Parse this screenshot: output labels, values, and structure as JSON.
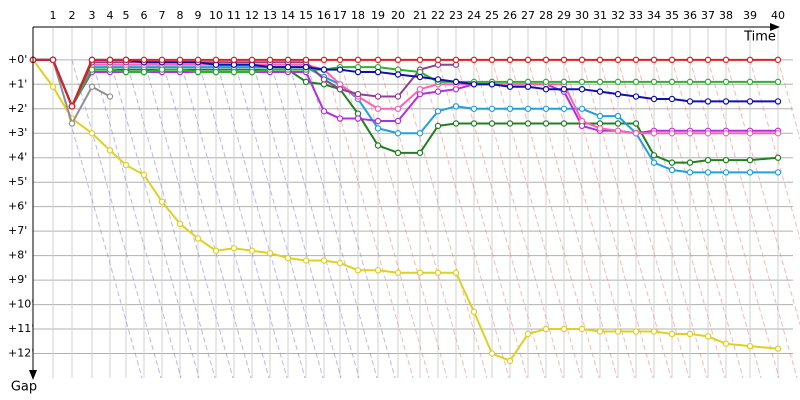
{
  "chart_data": {
    "type": "line",
    "x_label": "Time",
    "y_label": "Gap",
    "x": [
      0,
      20,
      39,
      59,
      77,
      93,
      111,
      129,
      147,
      165,
      183,
      201,
      219,
      237,
      255,
      273,
      291,
      307,
      325,
      345,
      365,
      387,
      405,
      423,
      441,
      459,
      477,
      495,
      513,
      531,
      549,
      567,
      585,
      603,
      621,
      639,
      657,
      675,
      693,
      717,
      745
    ],
    "xlim": [
      0,
      760
    ],
    "xticks": [
      {
        "value": 20,
        "label": "1"
      },
      {
        "value": 39,
        "label": "2"
      },
      {
        "value": 59,
        "label": "3"
      },
      {
        "value": 77,
        "label": "4"
      },
      {
        "value": 93,
        "label": "5"
      },
      {
        "value": 111,
        "label": "6"
      },
      {
        "value": 129,
        "label": "7"
      },
      {
        "value": 147,
        "label": "8"
      },
      {
        "value": 165,
        "label": "9"
      },
      {
        "value": 183,
        "label": "10"
      },
      {
        "value": 201,
        "label": "11"
      },
      {
        "value": 219,
        "label": "12"
      },
      {
        "value": 237,
        "label": "13"
      },
      {
        "value": 255,
        "label": "14"
      },
      {
        "value": 273,
        "label": "15"
      },
      {
        "value": 291,
        "label": "16"
      },
      {
        "value": 307,
        "label": "17"
      },
      {
        "value": 325,
        "label": "18"
      },
      {
        "value": 345,
        "label": "19"
      },
      {
        "value": 365,
        "label": "20"
      },
      {
        "value": 387,
        "label": "21"
      },
      {
        "value": 405,
        "label": "22"
      },
      {
        "value": 423,
        "label": "23"
      },
      {
        "value": 441,
        "label": "24"
      },
      {
        "value": 459,
        "label": "25"
      },
      {
        "value": 477,
        "label": "26"
      },
      {
        "value": 495,
        "label": "27"
      },
      {
        "value": 513,
        "label": "28"
      },
      {
        "value": 531,
        "label": "29"
      },
      {
        "value": 549,
        "label": "30"
      },
      {
        "value": 567,
        "label": "31"
      },
      {
        "value": 585,
        "label": "32"
      },
      {
        "value": 603,
        "label": "33"
      },
      {
        "value": 621,
        "label": "34"
      },
      {
        "value": 639,
        "label": "35"
      },
      {
        "value": 657,
        "label": "36"
      },
      {
        "value": 675,
        "label": "37"
      },
      {
        "value": 693,
        "label": "38"
      },
      {
        "value": 717,
        "label": "39"
      },
      {
        "value": 745,
        "label": "40"
      }
    ],
    "ylim": [
      -1.3,
      13
    ],
    "yticks": [
      {
        "value": 0,
        "label": "+0'"
      },
      {
        "value": 1,
        "label": "+1'"
      },
      {
        "value": 2,
        "label": "+2'"
      },
      {
        "value": 3,
        "label": "+3'"
      },
      {
        "value": 4,
        "label": "+4'"
      },
      {
        "value": 5,
        "label": "+5'"
      },
      {
        "value": 6,
        "label": "+6'"
      },
      {
        "value": 7,
        "label": "+7'"
      },
      {
        "value": 8,
        "label": "+8'"
      },
      {
        "value": 9,
        "label": "+9'"
      },
      {
        "value": 10,
        "label": "+10'"
      },
      {
        "value": 11,
        "label": "+11'"
      },
      {
        "value": 12,
        "label": "+12'"
      }
    ],
    "grid": true,
    "series": [
      {
        "color": "#e0d020",
        "values": [
          0,
          1.1,
          2.4,
          3.0,
          3.7,
          4.3,
          4.7,
          5.8,
          6.7,
          7.3,
          7.8,
          7.7,
          7.8,
          7.9,
          8.1,
          8.2,
          8.2,
          8.3,
          8.6,
          8.6,
          8.7,
          8.7,
          8.7,
          8.7,
          10.3,
          12.0,
          12.3,
          11.2,
          11.0,
          11.0,
          11.0,
          11.1,
          11.1,
          11.1,
          11.1,
          11.2,
          11.2,
          11.3,
          11.6,
          11.7,
          11.8
        ]
      },
      {
        "color": "#909090",
        "values": [
          0,
          0,
          2.6,
          1.1,
          1.5,
          null,
          null,
          null,
          null,
          null,
          null,
          null,
          null,
          null,
          null,
          null,
          null,
          null,
          null,
          null,
          null,
          null,
          null,
          null,
          null,
          null,
          null,
          null,
          null,
          null,
          null,
          null,
          null,
          null,
          null,
          null,
          null,
          null,
          null,
          null,
          null
        ]
      },
      {
        "color": "#208020",
        "values": [
          0,
          0,
          1.9,
          0.4,
          0.4,
          0.4,
          0.4,
          0.4,
          0.4,
          0.4,
          0.4,
          0.4,
          0.4,
          0.4,
          0.4,
          0.9,
          1.0,
          1.2,
          2.2,
          3.5,
          3.8,
          3.8,
          2.7,
          2.6,
          2.6,
          2.6,
          2.6,
          2.6,
          2.6,
          2.6,
          2.6,
          2.6,
          2.6,
          2.6,
          3.9,
          4.2,
          4.2,
          4.1,
          4.1,
          4.1,
          4.0
        ]
      },
      {
        "color": "#20a0e0",
        "values": [
          0,
          0,
          1.9,
          0.3,
          0.3,
          0.3,
          0.3,
          0.3,
          0.3,
          0.3,
          0.3,
          0.3,
          0.3,
          0.3,
          0.3,
          0.3,
          0.7,
          1.0,
          1.6,
          2.8,
          3.0,
          3.0,
          2.1,
          1.9,
          2.0,
          2.0,
          2.0,
          2.0,
          2.0,
          2.0,
          2.0,
          2.3,
          2.3,
          3.0,
          4.2,
          4.5,
          4.6,
          4.6,
          4.6,
          4.6,
          4.6
        ]
      },
      {
        "color": "#b030e0",
        "values": [
          0,
          0,
          1.9,
          0.5,
          0.5,
          0.5,
          0.5,
          0.5,
          0.5,
          0.5,
          0.5,
          0.5,
          0.5,
          0.5,
          0.5,
          0.5,
          2.1,
          2.4,
          2.4,
          2.5,
          2.5,
          1.4,
          1.3,
          1.2,
          1.0,
          1.0,
          1.0,
          1.0,
          1.0,
          1.3,
          2.7,
          2.9,
          2.9,
          3.0,
          2.9,
          2.9,
          2.9,
          2.9,
          2.9,
          2.9,
          2.9
        ]
      },
      {
        "color": "#ff60b0",
        "values": [
          0,
          0,
          1.9,
          0.2,
          0.2,
          0.2,
          0.2,
          0.2,
          0.2,
          0.2,
          0.2,
          0.2,
          0.2,
          0.2,
          0.2,
          0.2,
          0.4,
          1.0,
          1.5,
          2.0,
          2.0,
          1.2,
          1.0,
          1.0,
          1.0,
          1.0,
          1.0,
          1.0,
          1.0,
          1.0,
          2.5,
          2.8,
          2.9,
          3.0,
          3.0,
          3.0,
          3.0,
          3.0,
          3.0,
          3.0,
          3.0
        ]
      },
      {
        "color": "#904090",
        "values": [
          0,
          0,
          1.9,
          0.1,
          0.1,
          0.1,
          0.1,
          0.1,
          0.1,
          0.1,
          0.1,
          0.1,
          0.1,
          0.1,
          0.1,
          0.1,
          0.8,
          1.2,
          1.4,
          1.5,
          1.5,
          0.4,
          0.2,
          0.2,
          null,
          null,
          null,
          null,
          null,
          null,
          null,
          null,
          null,
          null,
          null,
          null,
          null,
          null,
          null,
          null,
          null
        ]
      },
      {
        "color": "#30b030",
        "values": [
          0,
          0,
          1.9,
          0.4,
          0.4,
          0.5,
          0.5,
          0.4,
          0.4,
          0.5,
          0.5,
          0.5,
          0.5,
          0.4,
          0.4,
          0.4,
          0.4,
          0.3,
          0.3,
          0.3,
          0.4,
          0.5,
          0.9,
          0.9,
          0.9,
          0.9,
          0.9,
          0.9,
          0.9,
          0.9,
          0.9,
          0.9,
          0.9,
          0.9,
          0.9,
          0.9,
          0.9,
          0.9,
          0.9,
          0.9,
          0.9
        ]
      },
      {
        "color": "#1010b0",
        "values": [
          0,
          0,
          1.9,
          0,
          0,
          0,
          0.1,
          0.1,
          0.1,
          0.1,
          0.2,
          0.2,
          0.2,
          0.3,
          0.3,
          0.3,
          0.4,
          0.4,
          0.5,
          0.5,
          0.6,
          0.7,
          0.8,
          0.9,
          1.0,
          1.0,
          1.1,
          1.1,
          1.2,
          1.2,
          1.2,
          1.3,
          1.4,
          1.5,
          1.6,
          1.6,
          1.7,
          1.7,
          1.7,
          1.7,
          1.7
        ]
      },
      {
        "color": "#e02020",
        "values": [
          0,
          0,
          1.9,
          0,
          0,
          0,
          0,
          0,
          0,
          0,
          0,
          0,
          0,
          0,
          0,
          0,
          0,
          0,
          0,
          0,
          0,
          0,
          0,
          0,
          0,
          0,
          0,
          0,
          0,
          0,
          0,
          0,
          0,
          0,
          0,
          0,
          0,
          0,
          0,
          0,
          0
        ]
      }
    ]
  }
}
